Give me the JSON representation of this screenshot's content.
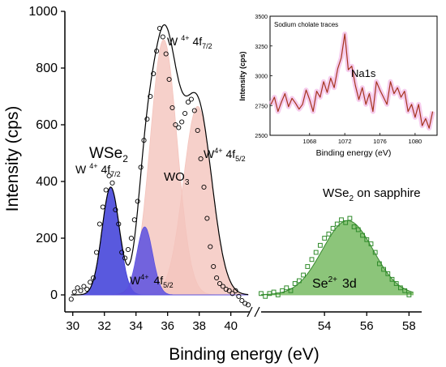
{
  "chart_data": [
    {
      "type": "scatter",
      "panel": "main",
      "xlabel": "Binding energy (eV)",
      "ylabel": "Intensity (cps)",
      "ylim": [
        -60,
        1000
      ],
      "x_segments": [
        [
          29.5,
          41.3
        ],
        [
          51,
          58.6
        ]
      ],
      "x_ticks": [
        30,
        32,
        34,
        36,
        38,
        40,
        54,
        56,
        58
      ],
      "y_ticks": [
        0,
        200,
        400,
        600,
        800,
        1000
      ],
      "annotations": {
        "wse2": "WSe",
        "wse2_sub": "2",
        "w_left": "W",
        "w_left_sup": "4+",
        "w_left_rest": "4f",
        "w_left_sub": "7/2",
        "w_top": "W",
        "w_top_sup": "4+",
        "w_top_rest": "4f",
        "w_top_sub": "7/2",
        "w_right": "W",
        "w_right_sup": "4+",
        "w_right_rest": "4f",
        "w_right_sub": "5/2",
        "w_bottom": "W",
        "w_bottom_sup": "4+",
        "w_bottom_rest": "4f",
        "w_bottom_sub": "5/2",
        "wo3": "WO",
        "wo3_sub": "3",
        "sapphire": "WSe",
        "sapphire_sub": "2",
        "sapphire_rest": " on sapphire",
        "se": "Se",
        "se_sup": "2+",
        "se_rest": "3d"
      },
      "w_series": {
        "x": [
          29.9,
          30.1,
          30.3,
          30.5,
          30.7,
          30.9,
          31.1,
          31.3,
          31.5,
          31.7,
          31.9,
          32.1,
          32.3,
          32.5,
          32.7,
          32.9,
          33.1,
          33.3,
          33.5,
          33.7,
          33.9,
          34.1,
          34.3,
          34.5,
          34.7,
          34.9,
          35.1,
          35.3,
          35.5,
          35.7,
          35.9,
          36.1,
          36.3,
          36.5,
          36.7,
          36.9,
          37.1,
          37.3,
          37.5,
          37.7,
          37.9,
          38.1,
          38.3,
          38.5,
          38.7,
          38.9,
          39.1,
          39.3,
          39.5,
          39.7,
          39.9,
          40.1,
          40.3,
          40.5,
          40.7,
          40.9,
          41.1
        ],
        "y": [
          -15,
          10,
          25,
          15,
          30,
          20,
          45,
          60,
          150,
          250,
          310,
          370,
          420,
          395,
          300,
          250,
          150,
          130,
          160,
          200,
          265,
          330,
          450,
          545,
          620,
          700,
          780,
          860,
          940,
          910,
          850,
          760,
          660,
          600,
          590,
          610,
          640,
          680,
          690,
          650,
          580,
          480,
          380,
          270,
          170,
          100,
          60,
          40,
          30,
          20,
          15,
          5,
          15,
          -5,
          -20,
          -30,
          -35
        ]
      },
      "se_series": {
        "x": [
          51.0,
          51.2,
          51.4,
          51.6,
          51.8,
          52.0,
          52.2,
          52.4,
          52.6,
          52.8,
          53.0,
          53.2,
          53.4,
          53.6,
          53.8,
          54.0,
          54.2,
          54.4,
          54.6,
          54.8,
          55.0,
          55.2,
          55.4,
          55.6,
          55.8,
          56.0,
          56.2,
          56.4,
          56.6,
          56.8,
          57.0,
          57.2,
          57.4,
          57.6,
          57.8,
          58.0
        ],
        "y": [
          5,
          -5,
          5,
          10,
          0,
          15,
          25,
          15,
          40,
          50,
          70,
          100,
          125,
          150,
          175,
          200,
          215,
          235,
          250,
          265,
          255,
          270,
          240,
          230,
          210,
          195,
          180,
          150,
          110,
          90,
          75,
          55,
          40,
          25,
          15,
          0
        ]
      },
      "components": [
        {
          "name": "W 4f7/2",
          "center": 32.4,
          "height": 380,
          "width": 0.55,
          "color": "#3c3cd8"
        },
        {
          "name": "W 4f5/2",
          "center": 34.55,
          "height": 240,
          "width": 0.5,
          "color": "#5a50e0"
        },
        {
          "name": "WO3 4f7/2",
          "center": 35.75,
          "height": 900,
          "width": 0.85,
          "color": "#f4c4bd"
        },
        {
          "name": "WO3 4f5/2",
          "center": 37.9,
          "height": 665,
          "width": 0.9,
          "color": "#f4c4bd"
        },
        {
          "name": "Se 3d",
          "center": 55.1,
          "height": 262,
          "width": 1.2,
          "color": "#7fbf6b"
        }
      ]
    },
    {
      "type": "line",
      "panel": "inset",
      "title": "Sodium cholate traces",
      "xlabel": "Binding energy (eV)",
      "ylabel": "Intensity (cps)",
      "label": "Na1s",
      "xlim": [
        1063.5,
        1082.5
      ],
      "ylim": [
        2500,
        3500
      ],
      "x_ticks": [
        1068,
        1072,
        1076,
        1080
      ],
      "y_ticks": [
        2500,
        2750,
        3000,
        3250,
        3500
      ],
      "colors": {
        "line": "#a5331d",
        "glow": "#f2b7e6"
      },
      "x": [
        1063.6,
        1064.0,
        1064.4,
        1064.8,
        1065.2,
        1065.6,
        1066.0,
        1066.4,
        1066.8,
        1067.2,
        1067.6,
        1068.0,
        1068.4,
        1068.8,
        1069.2,
        1069.6,
        1070.0,
        1070.4,
        1070.8,
        1071.2,
        1071.6,
        1072.0,
        1072.4,
        1072.8,
        1073.2,
        1073.6,
        1074.0,
        1074.4,
        1074.8,
        1075.2,
        1075.6,
        1076.0,
        1076.4,
        1076.8,
        1077.2,
        1077.6,
        1078.0,
        1078.4,
        1078.8,
        1079.2,
        1079.6,
        1080.0,
        1080.4,
        1080.8,
        1081.2,
        1081.6,
        1082.0
      ],
      "y": [
        2760,
        2820,
        2700,
        2780,
        2850,
        2740,
        2810,
        2770,
        2720,
        2760,
        2880,
        2800,
        2700,
        2870,
        2820,
        2950,
        2860,
        2980,
        2900,
        3060,
        3150,
        3350,
        3050,
        3080,
        2920,
        2800,
        2900,
        2760,
        2850,
        2700,
        2950,
        2880,
        2820,
        2760,
        2950,
        2850,
        2900,
        2820,
        2870,
        2700,
        2760,
        2650,
        2760,
        2580,
        2640,
        2560,
        2700
      ]
    }
  ]
}
